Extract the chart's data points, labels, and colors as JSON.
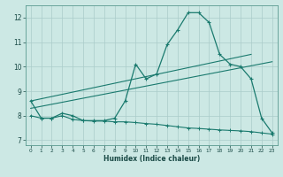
{
  "xlabel": "Humidex (Indice chaleur)",
  "background_color": "#cce8e4",
  "grid_color": "#aaccca",
  "line_color": "#1a7a6e",
  "xlim": [
    -0.5,
    23.5
  ],
  "ylim": [
    6.8,
    12.5
  ],
  "yticks": [
    7,
    8,
    9,
    10,
    11,
    12
  ],
  "xticks": [
    0,
    1,
    2,
    3,
    4,
    5,
    6,
    7,
    8,
    9,
    10,
    11,
    12,
    13,
    14,
    15,
    16,
    17,
    18,
    19,
    20,
    21,
    22,
    23
  ],
  "main_x": [
    0,
    1,
    2,
    3,
    4,
    5,
    6,
    7,
    8,
    9,
    10,
    11,
    12,
    13,
    14,
    15,
    16,
    17,
    18,
    19,
    20,
    21,
    22,
    23
  ],
  "main_y": [
    8.6,
    7.9,
    7.9,
    8.1,
    8.0,
    7.8,
    7.8,
    7.8,
    7.9,
    8.6,
    10.1,
    9.5,
    9.7,
    10.9,
    11.5,
    12.2,
    12.2,
    11.8,
    10.5,
    10.1,
    10.0,
    9.5,
    7.9,
    7.3
  ],
  "trend1_x": [
    0,
    21
  ],
  "trend1_y": [
    8.6,
    10.5
  ],
  "trend2_x": [
    0,
    23
  ],
  "trend2_y": [
    8.3,
    10.2
  ],
  "lower_x": [
    0,
    1,
    2,
    3,
    4,
    5,
    6,
    7,
    8,
    9,
    10,
    11,
    12,
    13,
    14,
    15,
    16,
    17,
    18,
    19,
    20,
    21,
    22,
    23
  ],
  "lower_y": [
    8.0,
    7.9,
    7.9,
    8.0,
    7.85,
    7.8,
    7.78,
    7.78,
    7.75,
    7.75,
    7.72,
    7.68,
    7.65,
    7.6,
    7.55,
    7.5,
    7.48,
    7.45,
    7.42,
    7.4,
    7.38,
    7.35,
    7.3,
    7.25
  ]
}
